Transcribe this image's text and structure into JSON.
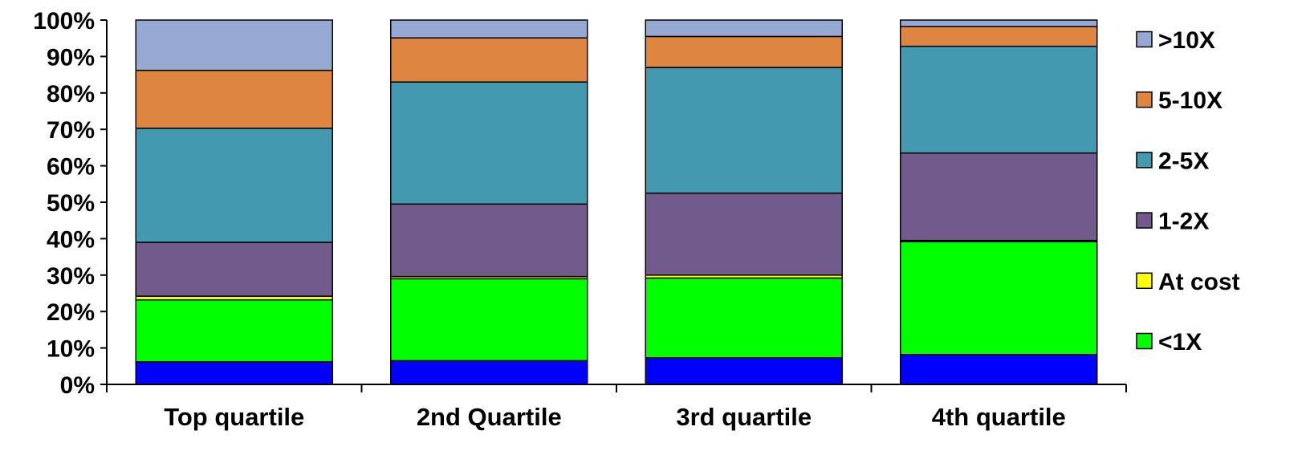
{
  "chart_data": {
    "type": "bar",
    "stacked": true,
    "categories": [
      "Top quartile",
      "2nd Quartile",
      "3rd quartile",
      "4th quartile"
    ],
    "series": [
      {
        "name": "",
        "color": "#0000ff",
        "values": [
          6.2,
          6.5,
          7.3,
          8.2
        ]
      },
      {
        "name": "<1X",
        "color": "#00ff00",
        "values": [
          17.0,
          22.5,
          21.9,
          31.0
        ]
      },
      {
        "name": "At cost",
        "color": "#ffff00",
        "values": [
          1.0,
          0.6,
          0.8,
          0.3
        ]
      },
      {
        "name": "1-2X",
        "color": "#715a8c",
        "values": [
          14.8,
          19.9,
          22.5,
          24.0
        ]
      },
      {
        "name": "2-5X",
        "color": "#4299b0",
        "values": [
          31.3,
          33.5,
          34.5,
          29.3
        ]
      },
      {
        "name": "5-10X",
        "color": "#de863f",
        "values": [
          15.9,
          12.1,
          8.5,
          5.4
        ]
      },
      {
        "name": ">10X",
        "color": "#95a9d3",
        "values": [
          13.8,
          4.9,
          4.5,
          1.8
        ]
      }
    ],
    "ylim": [
      0,
      100
    ],
    "yticks": [
      "0%",
      "10%",
      "20%",
      "30%",
      "40%",
      "50%",
      "60%",
      "70%",
      "80%",
      "90%",
      "100%"
    ],
    "legend": {
      "placement": "right",
      "entries": [
        ">10X",
        "5-10X",
        "2-5X",
        "1-2X",
        "At cost",
        "<1X"
      ]
    },
    "grid": false,
    "title": "",
    "xlabel": "",
    "ylabel": ""
  }
}
